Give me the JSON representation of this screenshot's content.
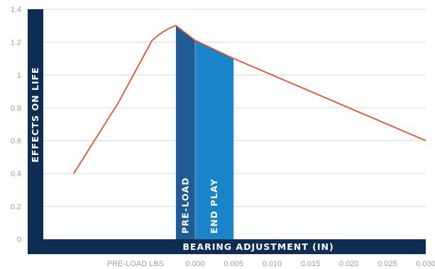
{
  "chart_data": {
    "type": "line",
    "title": "",
    "ylabel": "EFFECTS ON LIFE",
    "xlabel": "BEARING ADJUSTMENT (IN)",
    "ylim": [
      0,
      1.4
    ],
    "y_ticks": [
      "0",
      "0.2",
      "0.4",
      "0.6",
      "0.8",
      "1",
      "1.2",
      "1.4"
    ],
    "x_secondary_label": "PRE-LOAD LBS",
    "x_ticks": [
      "0.000",
      "0.005",
      "0.010",
      "0.015",
      "0.020",
      "0.025",
      "0.030"
    ],
    "x_ticks_data": [
      0.0,
      0.005,
      0.01,
      0.015,
      0.02,
      0.025,
      0.03
    ],
    "grid": true,
    "series": [
      {
        "x": [
          -0.0158,
          -0.01,
          -0.0056,
          -0.004,
          -0.0025,
          0.0,
          0.005,
          0.03
        ],
        "y": [
          0.4,
          0.83,
          1.21,
          1.26,
          1.3,
          1.21,
          1.1,
          0.6
        ]
      }
    ],
    "bands": [
      {
        "label": "PRE-LOAD",
        "x_start": -0.0025,
        "x_end": 0.0
      },
      {
        "label": "END PLAY",
        "x_start": 0.0,
        "x_end": 0.005
      }
    ],
    "colors": {
      "line": "#e8502a",
      "preload_band": "#1f5b95",
      "endplay_band": "#1984c7",
      "axis_bar": "#0e2d55",
      "grid": "#d6d9dd",
      "tick_text": "#9a9fa6"
    }
  }
}
